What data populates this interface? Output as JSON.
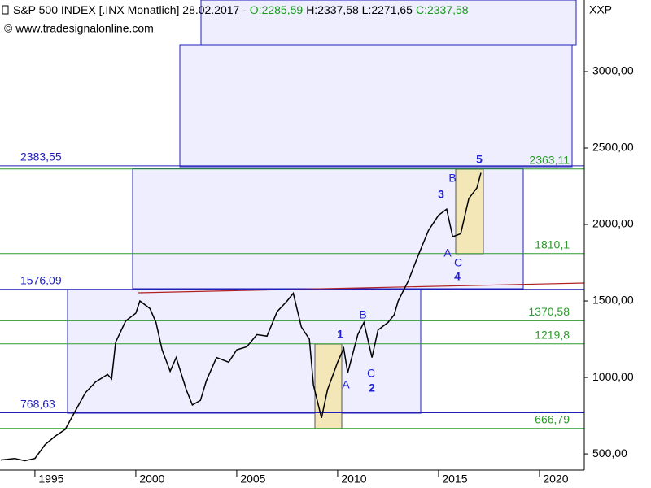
{
  "chart_data": {
    "type": "line",
    "title": "S&P 500 INDEX [.INX  Monatlich] 28.02.2017 - ",
    "open": "O:2285,59",
    "high_low": "H:2337,58 L:2271,65",
    "close": "C:2337,58",
    "copyright": "© www.tradesignalonline.com",
    "axis_label": "XXP",
    "xlim": [
      1993.27,
      2022.22
    ],
    "ylim": [
      394,
      3468
    ],
    "xticks": [
      1995,
      2000,
      2005,
      2010,
      2015,
      2020
    ],
    "yticks": [
      {
        "value": 500,
        "label": "500,00"
      },
      {
        "value": 1000,
        "label": "1000,00"
      },
      {
        "value": 1500,
        "label": "1500,00"
      },
      {
        "value": 2000,
        "label": "2000,00"
      },
      {
        "value": 2500,
        "label": "2500,00"
      },
      {
        "value": 3000,
        "label": "3000,00"
      }
    ],
    "series": [
      {
        "name": "S&P 500",
        "color": "#000000",
        "x": [
          1993.3,
          1994,
          1994.5,
          1995,
          1995.5,
          1996,
          1996.5,
          1997,
          1997.5,
          1998,
          1998.6,
          1998.8,
          1999,
          1999.5,
          2000,
          2000.2,
          2000.7,
          2001,
          2001.3,
          2001.7,
          2002,
          2002.5,
          2002.8,
          2003.2,
          2003.5,
          2004,
          2004.6,
          2005,
          2005.5,
          2006,
          2006.5,
          2007,
          2007.5,
          2007.8,
          2008.2,
          2008.6,
          2008.8,
          2009.2,
          2009.5,
          2010,
          2010.3,
          2010.5,
          2011,
          2011.3,
          2011.7,
          2012,
          2012.5,
          2012.8,
          2013,
          2013.5,
          2014,
          2014.5,
          2015,
          2015.4,
          2015.7,
          2016.1,
          2016.5,
          2016.9,
          2017.1
        ],
        "values": [
          460,
          470,
          455,
          470,
          560,
          615,
          660,
          780,
          900,
          970,
          1020,
          990,
          1230,
          1370,
          1420,
          1500,
          1450,
          1360,
          1180,
          1040,
          1130,
          920,
          820,
          850,
          980,
          1130,
          1100,
          1180,
          1200,
          1280,
          1270,
          1430,
          1500,
          1550,
          1330,
          1250,
          950,
          735,
          920,
          1100,
          1190,
          1030,
          1280,
          1360,
          1130,
          1310,
          1360,
          1410,
          1500,
          1630,
          1800,
          1960,
          2060,
          2100,
          1920,
          1940,
          2170,
          2240,
          2337.58
        ]
      }
    ],
    "levels": [
      {
        "value": 2383.55,
        "label": "2383,55",
        "color": "#1f1fb8",
        "side": "left"
      },
      {
        "value": 2363.11,
        "label": "2363,11",
        "color": "#2e9a2e",
        "side": "right"
      },
      {
        "value": 1810.1,
        "label": "1810,1",
        "color": "#2e9a2e",
        "side": "right"
      },
      {
        "value": 1576.09,
        "label": "1576,09",
        "color": "#1f1fb8",
        "side": "left"
      },
      {
        "value": 1370.58,
        "label": "1370,58",
        "color": "#2e9a2e",
        "side": "right"
      },
      {
        "value": 1219.8,
        "label": "1219,8",
        "color": "#2e9a2e",
        "side": "right"
      },
      {
        "value": 768.63,
        "label": "768,63",
        "color": "#1f1fb8",
        "side": "left"
      },
      {
        "value": 666.79,
        "label": "666,79",
        "color": "#2e9a2e",
        "side": "right"
      }
    ],
    "waves": [
      "1",
      "2",
      "3",
      "4",
      "5",
      "A",
      "B",
      "C",
      "A",
      "B",
      "C"
    ]
  }
}
